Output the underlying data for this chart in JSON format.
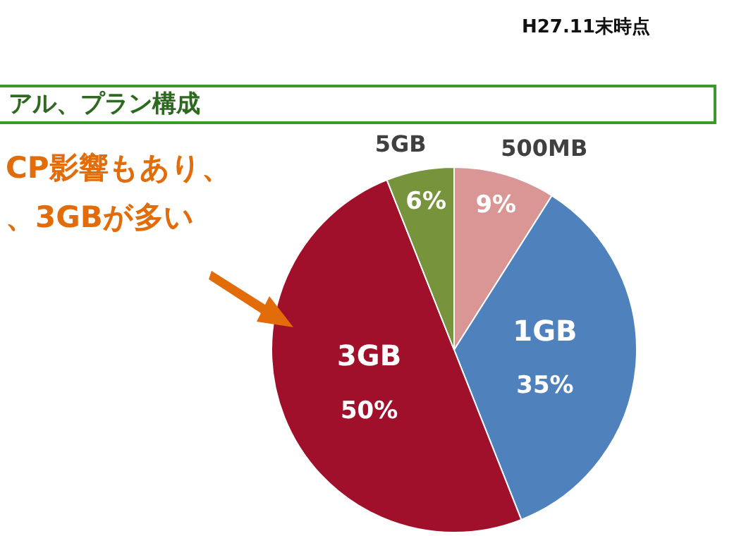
{
  "chart_data": {
    "type": "pie",
    "title": "アル、プラン構成",
    "categories": [
      "500MB",
      "1GB",
      "3GB",
      "5GB"
    ],
    "values": [
      9,
      35,
      50,
      6
    ],
    "colors": [
      "#d99694",
      "#4f81bd",
      "#a0102a",
      "#77933c"
    ],
    "value_labels": [
      "9%",
      "35%",
      "50%",
      "6%"
    ],
    "annotations": [
      "H27.11末時点",
      "CP影響もあり、",
      "、3GBが多い"
    ]
  }
}
